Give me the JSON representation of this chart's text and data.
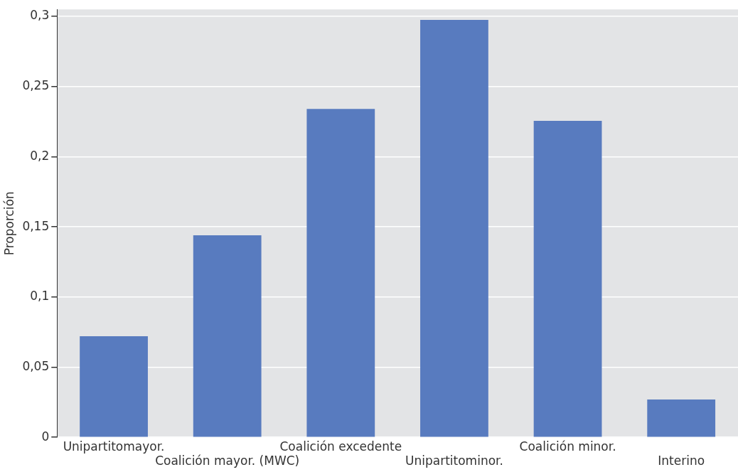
{
  "chart_data": {
    "type": "bar",
    "ylabel": "Proporción",
    "categories": [
      "Unipartitomayor.",
      "Coalición mayor. (MWC)",
      "Coalición excedente",
      "Unipartitominor.",
      "Coalición minor.",
      "Interino"
    ],
    "values": [
      0.072,
      0.144,
      0.234,
      0.2975,
      0.2255,
      0.027
    ],
    "color": "#587bbf",
    "ylim": [
      0,
      0.305
    ],
    "yticks": [
      {
        "value": 0,
        "label": "0"
      },
      {
        "value": 0.05,
        "label": "0,05"
      },
      {
        "value": 0.1,
        "label": "0,1"
      },
      {
        "value": 0.15,
        "label": "0,15"
      },
      {
        "value": 0.2,
        "label": "0,2"
      },
      {
        "value": 0.25,
        "label": "0,25"
      },
      {
        "value": 0.3,
        "label": "0,3"
      }
    ],
    "grid": "y",
    "legend": false
  }
}
